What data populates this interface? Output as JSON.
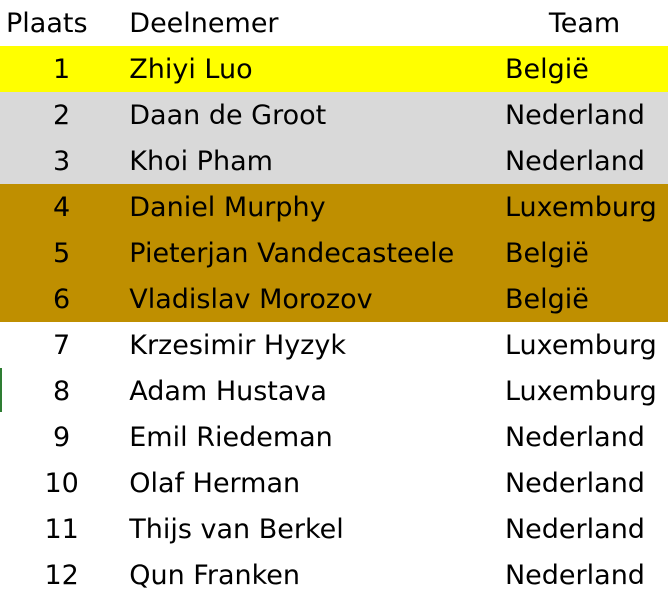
{
  "table": {
    "headers": {
      "place": "Plaats",
      "participant": "Deelnemer",
      "team": "Team"
    },
    "rows": [
      {
        "place": "1",
        "name": "Zhiyi Luo",
        "team": "België"
      },
      {
        "place": "2",
        "name": "Daan de Groot",
        "team": "Nederland"
      },
      {
        "place": "3",
        "name": "Khoi Pham",
        "team": "Nederland"
      },
      {
        "place": "4",
        "name": "Daniel Murphy",
        "team": "Luxemburg"
      },
      {
        "place": "5",
        "name": "Pieterjan Vandecasteele",
        "team": "België"
      },
      {
        "place": "6",
        "name": "Vladislav Morozov",
        "team": "België"
      },
      {
        "place": "7",
        "name": "Krzesimir Hyzyk",
        "team": "Luxemburg"
      },
      {
        "place": "8",
        "name": "Adam Hustava",
        "team": "Luxemburg"
      },
      {
        "place": "9",
        "name": "Emil Riedeman",
        "team": "Nederland"
      },
      {
        "place": "10",
        "name": "Olaf Herman",
        "team": "Nederland"
      },
      {
        "place": "11",
        "name": "Thijs van Berkel",
        "team": "Nederland"
      },
      {
        "place": "12",
        "name": "Qun Franken",
        "team": "Nederland"
      }
    ]
  },
  "colors": {
    "gold": "#ffff00",
    "silver": "#d9d9d9",
    "bronze": "#bf8f00",
    "none": "#ffffff"
  },
  "row_highlight": [
    "gold",
    "silver",
    "silver",
    "bronze",
    "bronze",
    "bronze",
    "none",
    "none",
    "none",
    "none",
    "none",
    "none"
  ]
}
